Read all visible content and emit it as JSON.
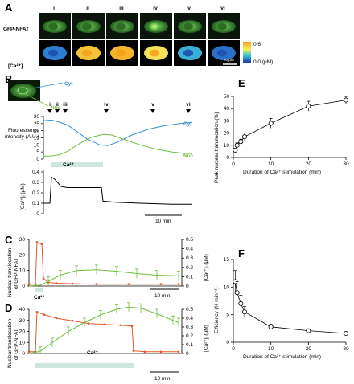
{
  "panels": {
    "A": {
      "label": "A",
      "frame_labels": [
        "i",
        "ii",
        "iii",
        "iv",
        "v",
        "vi"
      ],
      "row1_label": "GFP-NFAT",
      "row2_label": "[Ca²⁺]ᵢ",
      "colorbar_max": "0.6",
      "colorbar_min": "0.0 (μM)",
      "scalebar_label": "20 μm"
    },
    "B": {
      "label": "B",
      "markers": [
        "i",
        "ii",
        "iii",
        "iv",
        "v",
        "vi"
      ],
      "cyt_label": "Cyt",
      "nuc_label": "Nuc",
      "fi_ylabel": "Fluorescence\nintensity (A.U.)",
      "fi_ticks": [
        "0",
        "5",
        "10",
        "15",
        "20",
        "25",
        "30"
      ],
      "ca_label": "Ca²⁺",
      "ca_ylabel": "[Ca²⁺]ᵢ (μM)",
      "ca_ticks": [
        "0",
        "0.1",
        "0.2",
        "0.3",
        "0.4"
      ],
      "scalebar": "10 min",
      "colors": {
        "cyt": "#3a8fd6",
        "nuc": "#6cbf3a",
        "ca": "#000000"
      }
    },
    "C": {
      "label": "C",
      "ylabel_left": "Nuclear translocation\nof GFP-NFAT",
      "ylabel_right": "[Ca²⁺]ᵢ (μM)",
      "left_ticks": [
        "0",
        "10",
        "20",
        "30"
      ],
      "right_ticks": [
        "0",
        "0.1",
        "0.2",
        "0.3",
        "0.4",
        "0.5"
      ],
      "ca_label": "Ca²⁺",
      "scalebar": "10 min"
    },
    "D": {
      "label": "D",
      "ylabel_left": "Nuclear translocation\nof GFP-NFAT",
      "ylabel_right": "[Ca²⁺]ᵢ (μM)",
      "left_ticks": [
        "0",
        "10",
        "20",
        "30",
        "40"
      ],
      "right_ticks": [
        "0",
        "0.1",
        "0.2",
        "0.3",
        "0.4",
        "0.5"
      ],
      "ca_label": "Ca²⁺",
      "scalebar": "10 min"
    },
    "E": {
      "label": "E",
      "ylabel": "Peak nuclear translocation (%)",
      "xlabel": "Duration of Ca²⁺ stimulation (min)",
      "yticks": [
        "0",
        "10",
        "20",
        "30",
        "40",
        "50"
      ],
      "xticks": [
        "0",
        "10",
        "20",
        "30"
      ]
    },
    "F": {
      "label": "F",
      "ylabel": "Efficiency (% min⁻¹)",
      "xlabel": "Duration of Ca²⁺ stimulation (min)",
      "yticks": [
        "0",
        "5",
        "10",
        "15"
      ],
      "xticks": [
        "0",
        "10",
        "20",
        "30"
      ]
    }
  },
  "chart_data": [
    {
      "type": "line",
      "title": "",
      "xlabel": "Duration of Ca²⁺ stimulation (min)",
      "ylabel": "Peak nuclear translocation (%)",
      "x": [
        0.5,
        1,
        2,
        3,
        10,
        20,
        30
      ],
      "y": [
        6,
        10,
        13,
        17,
        28,
        42,
        47
      ],
      "err": [
        1.5,
        2,
        2,
        3,
        4,
        4,
        3
      ],
      "xlim": [
        0,
        30
      ],
      "ylim": [
        0,
        50
      ],
      "grid": false
    },
    {
      "type": "line",
      "title": "",
      "xlabel": "Duration of Ca²⁺ stimulation (min)",
      "ylabel": "Efficiency (% min⁻¹)",
      "x": [
        0.5,
        1,
        2,
        3,
        10,
        20,
        30
      ],
      "y": [
        11,
        9,
        7,
        5.5,
        2.8,
        2.1,
        1.6
      ],
      "err": [
        2,
        2,
        1.5,
        1,
        0.5,
        0.3,
        0.2
      ],
      "xlim": [
        0,
        30
      ],
      "ylim": [
        0,
        15
      ],
      "grid": false
    }
  ]
}
